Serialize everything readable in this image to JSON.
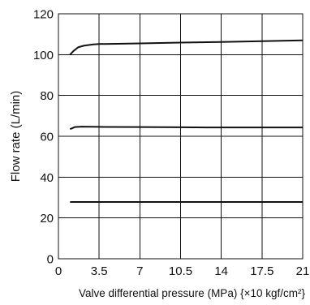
{
  "chart_data": {
    "type": "line",
    "xlabel": "Valve differential pressure (MPa) {×10 kgf/cm²}",
    "ylabel": "Flow rate (L/min)",
    "xlim": [
      0,
      21
    ],
    "ylim": [
      0,
      120
    ],
    "x_ticks": [
      "0",
      "3.5",
      "7",
      "10.5",
      "14",
      "17.5",
      "21"
    ],
    "x_tick_values": [
      0,
      3.5,
      7,
      10.5,
      14,
      17.5,
      21
    ],
    "y_ticks": [
      "0",
      "20",
      "40",
      "60",
      "80",
      "100",
      "120"
    ],
    "y_tick_values": [
      0,
      20,
      40,
      60,
      80,
      100,
      120
    ],
    "grid": true,
    "line_color": "#111111",
    "series": [
      {
        "x": [
          1.0,
          1.3,
          1.7,
          2.2,
          3.0,
          3.5,
          5,
          7,
          10.5,
          14,
          17.5,
          21
        ],
        "y": [
          100,
          101.8,
          103.6,
          104.4,
          105.0,
          105.2,
          105.3,
          105.5,
          105.9,
          106.2,
          106.6,
          107.0
        ]
      },
      {
        "x": [
          1.0,
          1.4,
          2.0,
          3.5,
          7,
          10.5,
          14,
          17.5,
          21
        ],
        "y": [
          63.5,
          64.5,
          64.7,
          64.6,
          64.5,
          64.4,
          64.3,
          64.3,
          64.3
        ]
      },
      {
        "x": [
          1.0,
          3.5,
          7,
          10.5,
          14,
          17.5,
          21
        ],
        "y": [
          27.8,
          27.8,
          27.8,
          27.8,
          27.8,
          27.8,
          27.8
        ]
      }
    ]
  }
}
